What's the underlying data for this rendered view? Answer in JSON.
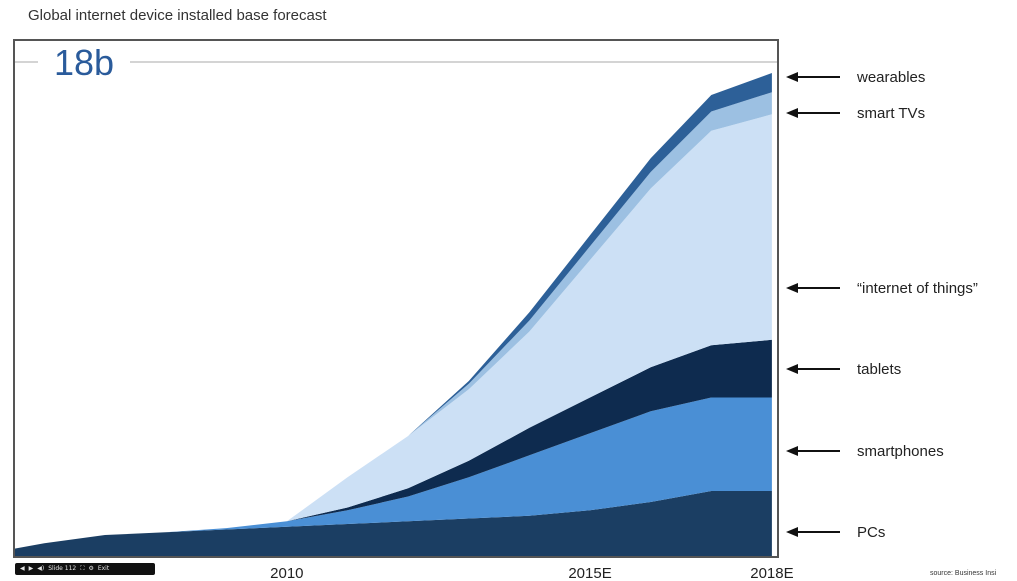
{
  "title": "Global internet device installed base forecast",
  "source": "source: Business Insi",
  "player": {
    "prev_icon": "◀",
    "play_icon": "▶",
    "volume_icon": "◀)",
    "slide_label": "Slide 112",
    "fullscreen_icon": "⛶",
    "settings_icon": "⚙",
    "exit_label": "Exit"
  },
  "colors": {
    "pcs": "#1b3e63",
    "smartphones": "#4a8fd5",
    "tablets": "#0e2b4f",
    "iot": "#cce0f5",
    "smart_tvs": "#9cc0e2",
    "wearables": "#2d6098",
    "frame": "#555555",
    "total_line": "#aaaaaa"
  },
  "chart_data": {
    "type": "area",
    "stacked": true,
    "title": "Global internet device installed base forecast",
    "total_label": "18b",
    "total_value": 18,
    "x_tick_labels": [
      "2010",
      "2015E",
      "2018E"
    ],
    "x_ticks": [
      2010,
      2015,
      2018
    ],
    "xlim": [
      2005.5,
      2018.1
    ],
    "ylim": [
      0,
      18.8
    ],
    "x": [
      2005.5,
      2006,
      2007,
      2008,
      2009,
      2010,
      2011,
      2012,
      2013,
      2014,
      2015,
      2016,
      2017,
      2018
    ],
    "series": [
      {
        "name": "PCs",
        "color_key": "pcs",
        "values": [
          0.3,
          0.5,
          0.8,
          0.9,
          1.0,
          1.1,
          1.2,
          1.3,
          1.4,
          1.5,
          1.7,
          2.0,
          2.4,
          2.4
        ]
      },
      {
        "name": "smartphones",
        "color_key": "smartphones",
        "values": [
          0,
          0,
          0,
          0,
          0.05,
          0.2,
          0.5,
          0.9,
          1.5,
          2.2,
          2.8,
          3.3,
          3.4,
          3.4
        ]
      },
      {
        "name": "tablets",
        "color_key": "tablets",
        "values": [
          0,
          0,
          0,
          0,
          0,
          0,
          0.1,
          0.3,
          0.6,
          1.0,
          1.3,
          1.6,
          1.9,
          2.1
        ]
      },
      {
        "name": "“internet of things”",
        "color_key": "iot",
        "values": [
          0,
          0,
          0,
          0,
          0,
          0,
          1.1,
          1.9,
          2.6,
          3.5,
          5.0,
          6.5,
          7.8,
          8.2
        ]
      },
      {
        "name": "smart TVs",
        "color_key": "smart_tvs",
        "values": [
          0,
          0,
          0,
          0,
          0,
          0,
          0,
          0,
          0.2,
          0.4,
          0.5,
          0.6,
          0.7,
          0.8
        ]
      },
      {
        "name": "wearables",
        "color_key": "wearables",
        "values": [
          0,
          0,
          0,
          0,
          0,
          0,
          0,
          0,
          0.1,
          0.3,
          0.4,
          0.5,
          0.6,
          0.7
        ]
      }
    ],
    "grid": false,
    "legend": "right, arrows pointing to layers"
  }
}
